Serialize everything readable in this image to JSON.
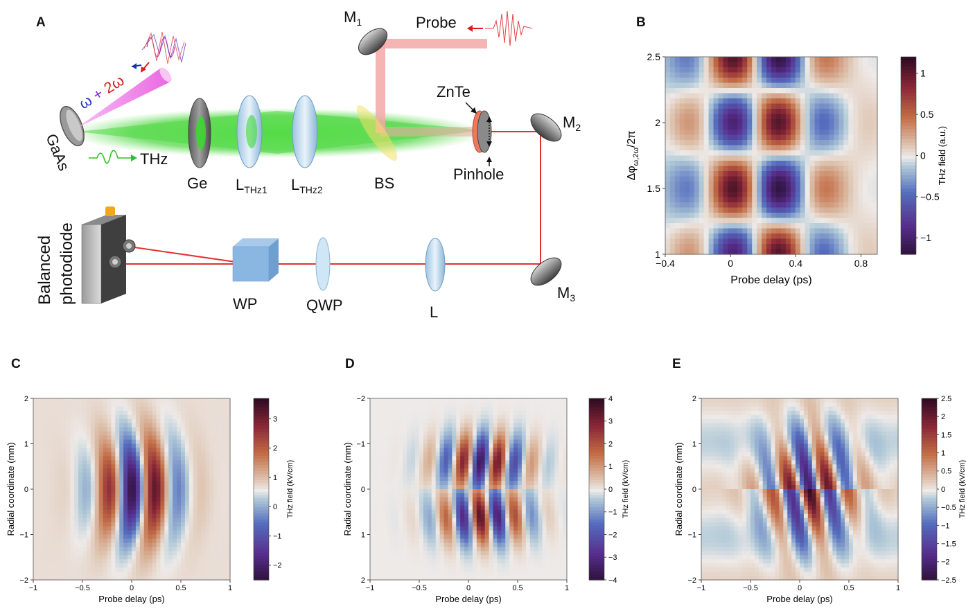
{
  "panels": {
    "a": "A",
    "b": "B",
    "c": "C",
    "d": "D",
    "e": "E"
  },
  "setup": {
    "labels": {
      "gaas": "GaAs",
      "thz": "THz",
      "omega": "ω",
      "plus": "+",
      "two_omega": "2ω",
      "ge": "Ge",
      "lthz1_main": "L",
      "lthz1_sub": "THz1",
      "lthz2_main": "L",
      "lthz2_sub": "THz2",
      "bs": "BS",
      "znte": "ZnTe",
      "pinhole": "Pinhole",
      "probe": "Probe",
      "m1_main": "M",
      "m1_sub": "1",
      "m2_main": "M",
      "m2_sub": "2",
      "m3_main": "M",
      "m3_sub": "3",
      "balanced": "Balanced",
      "photodiode": "photodiode",
      "wp": "WP",
      "qwp": "QWP",
      "l": "L"
    },
    "colors": {
      "thz_beam": "#3fd13a",
      "probe_beam": "#f08a8a",
      "laser_line": "#e23030",
      "pump": "#f06ae8"
    }
  },
  "chart_data": [
    {
      "id": "B",
      "type": "heatmap",
      "xlabel": "Probe delay (ps)",
      "ylabel": "Δφ_ω,2ω/2π",
      "xlim": [
        -0.4,
        0.9
      ],
      "ylim": [
        1,
        2.5
      ],
      "xticks": [
        "−0.4",
        "0",
        "0.4",
        "0.8"
      ],
      "yticks": [
        "1",
        "1.5",
        "2",
        "2.5"
      ],
      "colorbar_label": "THz field (a.u.)",
      "colorbar_ticks": [
        "1",
        "0.5",
        "0",
        "−0.5",
        "−1"
      ],
      "clim": [
        -1.2,
        1.2
      ]
    },
    {
      "id": "C",
      "type": "heatmap",
      "xlabel": "Probe delay (ps)",
      "ylabel": "Radial coordinate (mm)",
      "xlim": [
        -1,
        1
      ],
      "ylim": [
        -2,
        2
      ],
      "xticks": [
        "−1",
        "−0.5",
        "0",
        "0.5",
        "1"
      ],
      "yticks": [
        "2",
        "1",
        "0",
        "−1",
        "−2"
      ],
      "colorbar_label": "THz field (kV/cm)",
      "colorbar_ticks": [
        "3",
        "2",
        "1",
        "0",
        "−1",
        "−2"
      ],
      "clim": [
        -2.5,
        3.7
      ]
    },
    {
      "id": "D",
      "type": "heatmap",
      "xlabel": "Probe delay (ps)",
      "ylabel": "Radial coordinate (mm)",
      "xlim": [
        -1,
        1
      ],
      "ylim": [
        -2,
        2
      ],
      "xticks": [
        "−1",
        "−0.5",
        "0",
        "0.5",
        "1"
      ],
      "yticks": [
        "−2",
        "−1",
        "0",
        "1",
        "2"
      ],
      "colorbar_label": "THz field (kV/cm)",
      "colorbar_ticks": [
        "4",
        "3",
        "2",
        "1",
        "0",
        "−1",
        "−2",
        "−3",
        "−4"
      ],
      "clim": [
        -4,
        4
      ]
    },
    {
      "id": "E",
      "type": "heatmap",
      "xlabel": "Probe delay (ps)",
      "ylabel": "Radial coordinate (mm)",
      "xlim": [
        -1,
        1
      ],
      "ylim": [
        -2,
        2
      ],
      "xticks": [
        "−1",
        "−0.5",
        "0",
        "0.5",
        "1"
      ],
      "yticks": [
        "2",
        "1",
        "0",
        "−1",
        "−2"
      ],
      "colorbar_label": "THz field (kV/cm)",
      "colorbar_ticks": [
        "2.5",
        "2",
        "1.5",
        "1",
        "0.5",
        "0",
        "−0.5",
        "−1",
        "−1.5",
        "−2",
        "−2.5"
      ],
      "clim": [
        -2.5,
        2.5
      ]
    }
  ]
}
